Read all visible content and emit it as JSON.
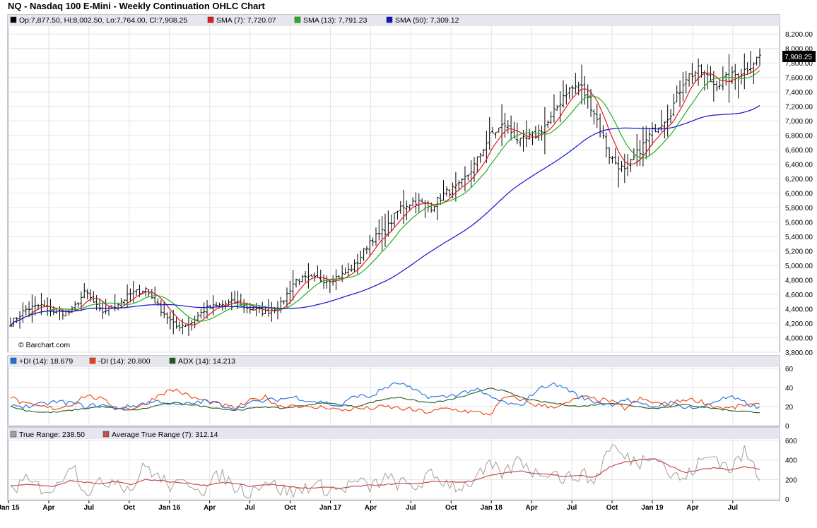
{
  "title": "NQ - Nasdaq 100 E-Mini - Weekly Continuation OHLC Chart",
  "watermark": "© Barchart.com",
  "last_price_label": "7,908.25",
  "legend_main": [
    {
      "text": "Op:7,877.50, Hi:8,002.50, Lo:7,764.00, Cl:7,908.25",
      "color": "#000000"
    },
    {
      "text": "SMA (7): 7,720.07",
      "color": "#e31a1c"
    },
    {
      "text": "SMA (13): 7,791.23",
      "color": "#22b022"
    },
    {
      "text": "SMA (50): 7,309.12",
      "color": "#1010d0"
    }
  ],
  "legend_dmi": [
    {
      "text": "+DI (14): 18.679",
      "color": "#1f6fe0"
    },
    {
      "text": "-DI (14): 20.800",
      "color": "#f04010"
    },
    {
      "text": "ADX (14): 14.213",
      "color": "#1e5a1e"
    }
  ],
  "legend_tr": [
    {
      "text": "True Range: 238.50",
      "color": "#a0a0a0"
    },
    {
      "text": "Average True Range (7): 312.14",
      "color": "#c05050"
    }
  ],
  "x_labels": [
    "Jan 15",
    "Apr",
    "Jul",
    "Oct",
    "Jan 16",
    "Apr",
    "Jul",
    "Oct",
    "Jan 17",
    "Apr",
    "Jul",
    "Oct",
    "Jan 18",
    "Apr",
    "Jul",
    "Oct",
    "Jan 19",
    "Apr",
    "Jul"
  ],
  "chart_data": [
    {
      "type": "ohlc",
      "panel": "price",
      "ylim": [
        3800,
        8300
      ],
      "yticks": [
        3800,
        4000,
        4200,
        4400,
        4600,
        4800,
        5000,
        5200,
        5400,
        5600,
        5800,
        6000,
        6200,
        6400,
        6600,
        6800,
        7000,
        7200,
        7400,
        7600,
        7800,
        8000,
        8200
      ],
      "ytick_labels": [
        "3,800.00",
        "4,000.00",
        "4,200.00",
        "4,400.00",
        "4,600.00",
        "4,800.00",
        "5,000.00",
        "5,200.00",
        "5,400.00",
        "5,600.00",
        "5,800.00",
        "6,000.00",
        "6,200.00",
        "6,400.00",
        "6,600.00",
        "6,800.00",
        "7,000.00",
        "7,200.00",
        "7,400.00",
        "7,600.00",
        "7,800.00",
        "8,000.00",
        "8,200.00"
      ],
      "x_dates": [
        "2015-01",
        "2015-04",
        "2015-07",
        "2015-10",
        "2016-01",
        "2016-04",
        "2016-07",
        "2016-10",
        "2017-01",
        "2017-04",
        "2017-07",
        "2017-10",
        "2018-01",
        "2018-04",
        "2018-07",
        "2018-10",
        "2019-01",
        "2019-04",
        "2019-07",
        "2019-09"
      ],
      "close_path": [
        4200,
        4390,
        4450,
        4350,
        4350,
        4640,
        4350,
        4450,
        4600,
        4680,
        4400,
        4150,
        4200,
        4400,
        4450,
        4500,
        4400,
        4350,
        4450,
        4800,
        4820,
        4800,
        4850,
        5000,
        5350,
        5480,
        5800,
        5900,
        5800,
        6000,
        6100,
        6400,
        6800,
        6950,
        6700,
        6800,
        7000,
        7400,
        7500,
        7100,
        6500,
        6300,
        6600,
        6900,
        7100,
        7600,
        7700,
        7500,
        7600,
        7700,
        7900
      ],
      "close": 7908.25,
      "open": 7877.5,
      "high": 8002.5,
      "low": 7764.0,
      "series": [
        {
          "name": "SMA (7)",
          "last": 7720.07,
          "color": "#e31a1c"
        },
        {
          "name": "SMA (13)",
          "last": 7791.23,
          "color": "#22b022"
        },
        {
          "name": "SMA (50)",
          "last": 7309.12,
          "color": "#1010d0"
        }
      ]
    },
    {
      "type": "line",
      "panel": "dmi",
      "ylim": [
        0,
        60
      ],
      "yticks": [
        0,
        20,
        40,
        60
      ],
      "plus_di_path": [
        22,
        20,
        22,
        25,
        24,
        20,
        22,
        18,
        20,
        24,
        26,
        21,
        23,
        26,
        22,
        18,
        24,
        26,
        28,
        30,
        26,
        24,
        20,
        32,
        30,
        40,
        45,
        36,
        30,
        30,
        34,
        38,
        30,
        24,
        20,
        36,
        44,
        40,
        30,
        25,
        22,
        28,
        22,
        20,
        24,
        20,
        18,
        26,
        30,
        24,
        18
      ],
      "minus_di_path": [
        30,
        22,
        20,
        18,
        22,
        32,
        28,
        20,
        18,
        22,
        34,
        38,
        30,
        26,
        22,
        18,
        26,
        30,
        20,
        22,
        18,
        20,
        16,
        18,
        18,
        20,
        18,
        16,
        14,
        18,
        16,
        14,
        12,
        30,
        28,
        22,
        20,
        22,
        30,
        28,
        26,
        18,
        28,
        24,
        22,
        28,
        26,
        20,
        18,
        22,
        21
      ],
      "adx_path": [
        20,
        16,
        14,
        14,
        16,
        18,
        20,
        18,
        16,
        18,
        22,
        24,
        22,
        20,
        18,
        16,
        18,
        20,
        18,
        20,
        22,
        24,
        22,
        20,
        24,
        28,
        30,
        26,
        24,
        26,
        30,
        34,
        40,
        36,
        30,
        26,
        24,
        22,
        20,
        22,
        24,
        22,
        20,
        18,
        20,
        22,
        20,
        18,
        16,
        15,
        14
      ],
      "series": [
        {
          "name": "+DI (14)",
          "last": 18.679,
          "color": "#1f6fe0"
        },
        {
          "name": "-DI (14)",
          "last": 20.8,
          "color": "#f04010"
        },
        {
          "name": "ADX (14)",
          "last": 14.213,
          "color": "#1e5a1e"
        }
      ]
    },
    {
      "type": "line",
      "panel": "true_range",
      "ylim": [
        0,
        600
      ],
      "yticks": [
        0,
        200,
        400,
        600
      ],
      "tr_path": [
        100,
        180,
        120,
        90,
        400,
        80,
        150,
        220,
        90,
        350,
        200,
        120,
        180,
        90,
        260,
        120,
        80,
        200,
        100,
        60,
        150,
        110,
        90,
        180,
        120,
        210,
        160,
        120,
        240,
        180,
        120,
        200,
        330,
        250,
        420,
        260,
        300,
        200,
        260,
        180,
        560,
        420,
        380,
        500,
        250,
        200,
        380,
        450,
        300,
        480,
        240
      ],
      "atr_path": [
        140,
        150,
        140,
        130,
        190,
        170,
        160,
        180,
        150,
        200,
        190,
        170,
        160,
        140,
        170,
        160,
        130,
        150,
        140,
        120,
        110,
        120,
        110,
        130,
        140,
        150,
        160,
        150,
        180,
        180,
        170,
        190,
        240,
        270,
        290,
        260,
        250,
        230,
        240,
        220,
        330,
        380,
        400,
        410,
        340,
        270,
        300,
        320,
        300,
        330,
        310
      ],
      "series": [
        {
          "name": "True Range",
          "last": 238.5,
          "color": "#a0a0a0"
        },
        {
          "name": "Average True Range (7)",
          "last": 312.14,
          "color": "#c05050"
        }
      ]
    }
  ]
}
